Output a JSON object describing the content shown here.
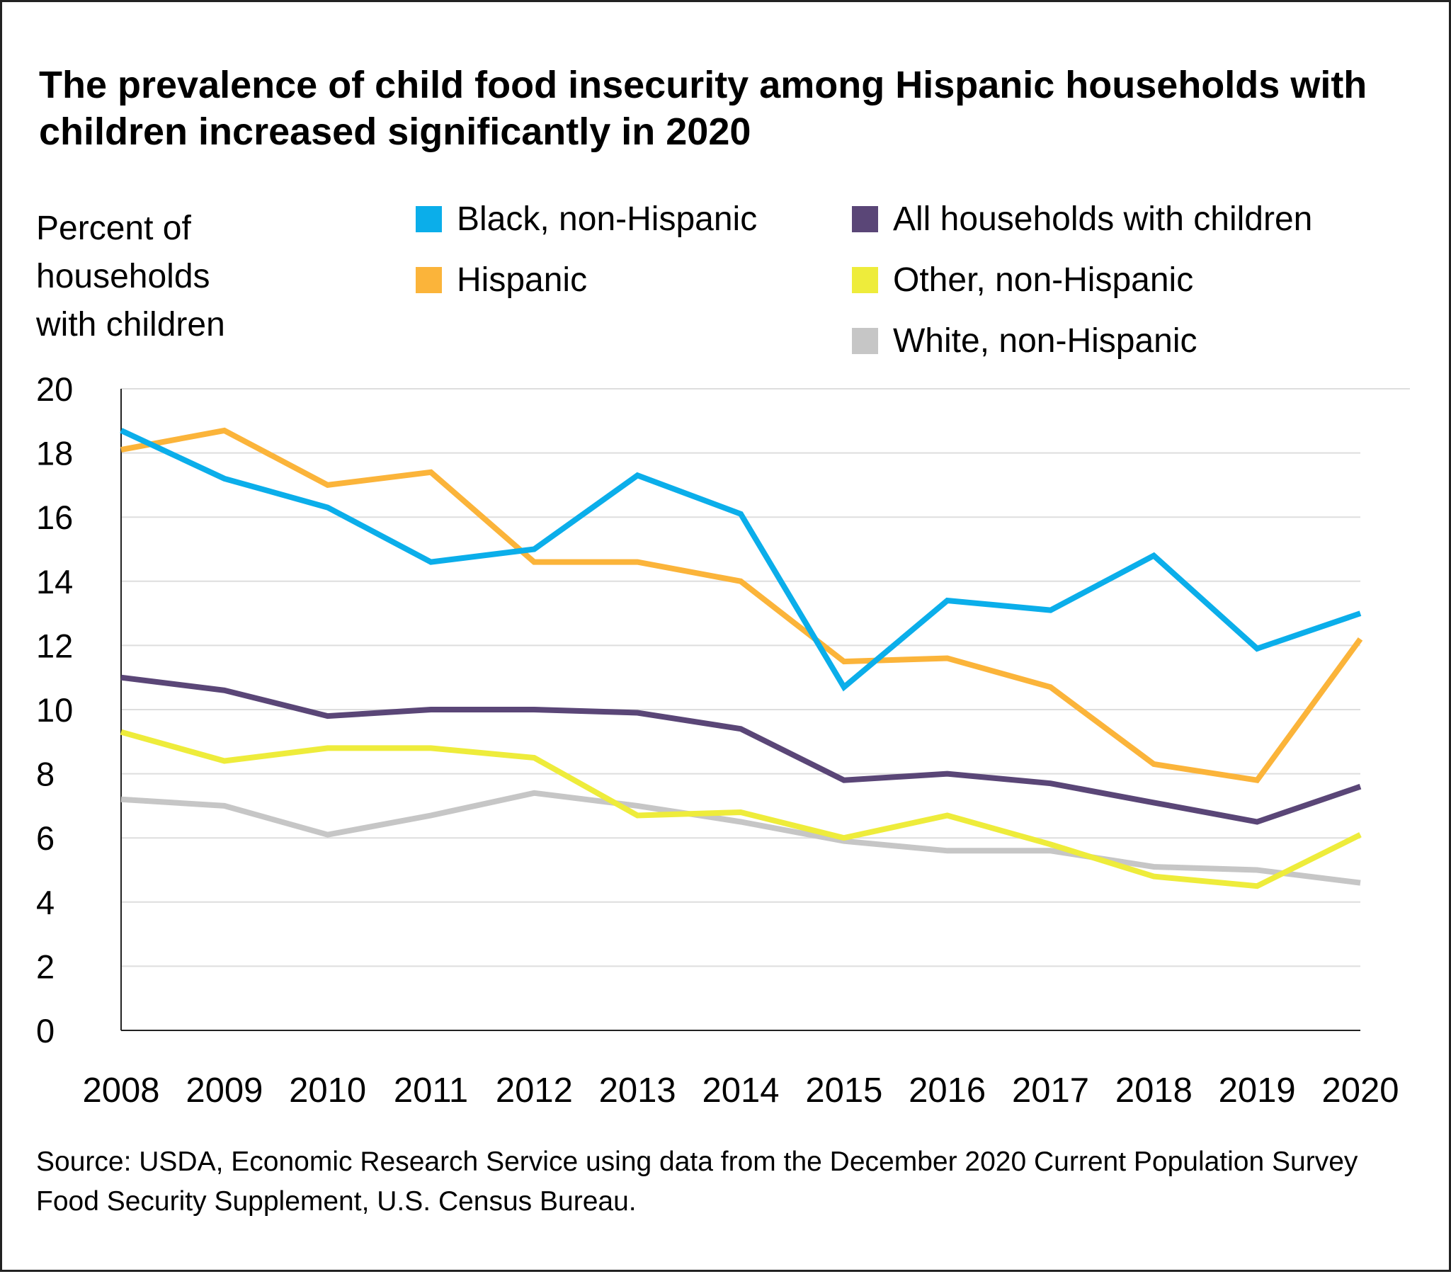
{
  "chart_data": {
    "type": "line",
    "title": "The prevalence of child food insecurity among Hispanic households with children increased significantly in 2020",
    "ylabel": "Percent of households with children",
    "xlabel": "",
    "x": [
      "2008",
      "2009",
      "2010",
      "2011",
      "2012",
      "2013",
      "2014",
      "2015",
      "2016",
      "2017",
      "2018",
      "2019",
      "2020"
    ],
    "ylim": [
      0,
      20
    ],
    "yticks": [
      "0",
      "2",
      "4",
      "6",
      "8",
      "10",
      "12",
      "14",
      "16",
      "18",
      "20"
    ],
    "grid": "horizontal",
    "legend_position": "top",
    "series": [
      {
        "name": "Black, non-Hispanic",
        "color": "#0BAEEA",
        "values": [
          18.7,
          17.2,
          16.3,
          14.6,
          15.0,
          17.3,
          16.1,
          10.7,
          13.4,
          13.1,
          14.8,
          11.9,
          13.0
        ]
      },
      {
        "name": "Hispanic",
        "color": "#FBB43A",
        "values": [
          18.1,
          18.7,
          17.0,
          17.4,
          14.6,
          14.6,
          14.0,
          11.5,
          11.6,
          10.7,
          8.3,
          7.8,
          12.2
        ]
      },
      {
        "name": "All households with children",
        "color": "#5A4677",
        "values": [
          11.0,
          10.6,
          9.8,
          10.0,
          10.0,
          9.9,
          9.4,
          7.8,
          8.0,
          7.7,
          7.1,
          6.5,
          7.6
        ]
      },
      {
        "name": "Other, non-Hispanic",
        "color": "#EEEC3B",
        "values": [
          9.3,
          8.4,
          8.8,
          8.8,
          8.5,
          6.7,
          6.8,
          6.0,
          6.7,
          5.8,
          4.8,
          4.5,
          6.1
        ]
      },
      {
        "name": "White, non-Hispanic",
        "color": "#C6C6C6",
        "values": [
          7.2,
          7.0,
          6.1,
          6.7,
          7.4,
          7.0,
          6.5,
          5.9,
          5.6,
          5.6,
          5.1,
          5.0,
          4.6
        ]
      }
    ]
  },
  "source": "Source: USDA, Economic Research Service using data from the December 2020 Current Population Survey Food Security Supplement, U.S. Census Bureau."
}
